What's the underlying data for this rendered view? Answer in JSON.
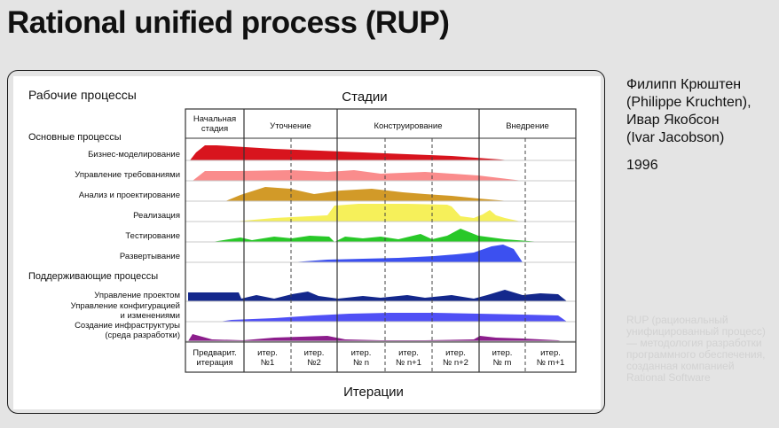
{
  "slide": {
    "title": "Rational unified process (RUP)",
    "authors": [
      "Филипп Крюштен",
      "(Philippe Kruchten),",
      "Ивар Якобсон",
      "(Ivar Jacobson)"
    ],
    "year": "1996",
    "description": "RUP (рациональный унифицированный процесс) — методология разработки программного обеспечения, созданная компанией Rational Software"
  },
  "diagram": {
    "workflows_heading": "Рабочие процессы",
    "stages_heading": "Стадии",
    "iterations_heading": "Итерации",
    "core_group": "Основные процессы",
    "support_group": "Поддерживающие процессы",
    "phases": [
      {
        "label": [
          "Начальная",
          "стадия"
        ]
      },
      {
        "label": [
          "Уточнение"
        ]
      },
      {
        "label": [
          "Конструирование"
        ]
      },
      {
        "label": [
          "Внедрение"
        ]
      }
    ],
    "iterations": [
      [
        "Предварит.",
        "итерация"
      ],
      [
        "итер.",
        "№1"
      ],
      [
        "итер.",
        "№2"
      ],
      [
        "итер.",
        "№ n"
      ],
      [
        "итер.",
        "№ n+1"
      ],
      [
        "итер.",
        "№ n+2"
      ],
      [
        "итер.",
        "№ m"
      ],
      [
        "итер.",
        "№ m+1"
      ]
    ],
    "rows": [
      {
        "label": [
          "Бизнес-моделирование"
        ],
        "color": "#d8141e"
      },
      {
        "label": [
          "Управление требованиями"
        ],
        "color": "#fa8c8c"
      },
      {
        "label": [
          "Анализ и проектирование"
        ],
        "color": "#d29a28"
      },
      {
        "label": [
          "Реализация"
        ],
        "color": "#f6f05a"
      },
      {
        "label": [
          "Тестирование"
        ],
        "color": "#28c828"
      },
      {
        "label": [
          "Развертывание"
        ],
        "color": "#3c50f0"
      },
      {
        "label": [
          "Управление проектом"
        ],
        "color": "#14288c"
      },
      {
        "label": [
          "Управление конфигурацией",
          "и изменениями"
        ],
        "color": "#5050f5"
      },
      {
        "label": [
          "Создание инфраструктуры",
          "(среда разработки)"
        ],
        "color": "#8c1e8c"
      }
    ]
  }
}
